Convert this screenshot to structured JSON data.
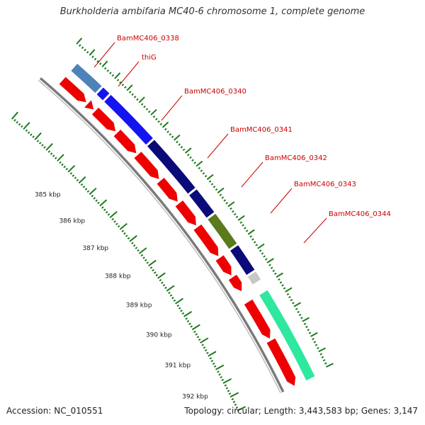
{
  "title": "Burkholderia ambifaria MC40-6 chromosome 1, complete genome",
  "accession_text": "Accession: NC_010551",
  "summary_text": "Topology: circular; Length: 3,443,583 bp; Genes: 3,147",
  "kbp_labels": [
    "385 kbp",
    "386 kbp",
    "387 kbp",
    "388 kbp",
    "389 kbp",
    "390 kbp",
    "391 kbp",
    "392 kbp"
  ],
  "gene_labels": [
    "BamMC406_0338",
    "thiG",
    "BamMC406_0340",
    "BamMC406_0341",
    "BamMC406_0342",
    "BamMC406_0343",
    "BamMC406_0344"
  ],
  "colors": {
    "cog_steelblue": "#4d83b8",
    "cog_blue": "#1414f0",
    "cog_navy": "#0a0a78",
    "cog_olive": "#5a7a1e",
    "cog_gray": "#c8c8c8",
    "cog_aqua": "#2ee8a0",
    "cds": "#ee0000",
    "label": "#cc0000",
    "tick": "#1e7a1e",
    "backbone": "#7a7a7a"
  }
}
